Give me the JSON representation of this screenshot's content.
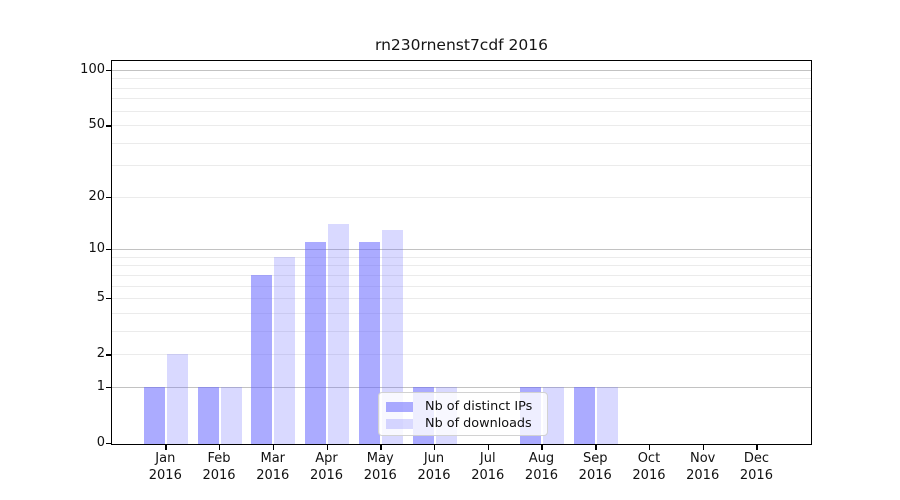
{
  "title": "rn230rnenst7cdf 2016",
  "chart_data": {
    "type": "bar",
    "title": "rn230rnenst7cdf 2016",
    "categories": [
      "Jan 2016",
      "Feb 2016",
      "Mar 2016",
      "Apr 2016",
      "May 2016",
      "Jun 2016",
      "Jul 2016",
      "Aug 2016",
      "Sep 2016",
      "Oct 2016",
      "Nov 2016",
      "Dec 2016"
    ],
    "x_tick_months": [
      "Jan",
      "Feb",
      "Mar",
      "Apr",
      "May",
      "Jun",
      "Jul",
      "Aug",
      "Sep",
      "Oct",
      "Nov",
      "Dec"
    ],
    "x_tick_year": "2016",
    "series": [
      {
        "name": "Nb of distinct IPs",
        "color_solid": "#a8a8f8",
        "color_rgba": "rgba(102,102,255,0.55)",
        "values": [
          1,
          1,
          7,
          11,
          11,
          1,
          0,
          1,
          1,
          0,
          0,
          0
        ]
      },
      {
        "name": "Nb of downloads",
        "color_solid": "#d9d9fb",
        "color_rgba": "rgba(102,102,255,0.25)",
        "values": [
          2,
          1,
          9,
          14,
          13,
          1,
          0,
          1,
          1,
          0,
          0,
          0
        ]
      }
    ],
    "y_scale": "log10(1+x)",
    "y_tick_labels": [
      "0",
      "1",
      "2",
      "5",
      "10",
      "20",
      "50",
      "100"
    ],
    "y_tick_values": [
      0,
      1,
      2,
      5,
      10,
      20,
      50,
      100
    ],
    "y_major_gridlines": [
      1,
      10,
      100
    ],
    "y_minor_gridlines": [
      2,
      3,
      4,
      5,
      6,
      7,
      8,
      9,
      20,
      30,
      40,
      50,
      60,
      70,
      80,
      90
    ],
    "ylim": [
      0,
      112
    ],
    "grid": true,
    "legend_position": "lower center",
    "colors": {
      "major_grid": "#c2c2c2",
      "minor_grid": "#ebebeb",
      "spine": "#000000",
      "legend_border": "#d2d2d2",
      "legend_bg": "rgba(255,255,255,0.8)"
    }
  }
}
